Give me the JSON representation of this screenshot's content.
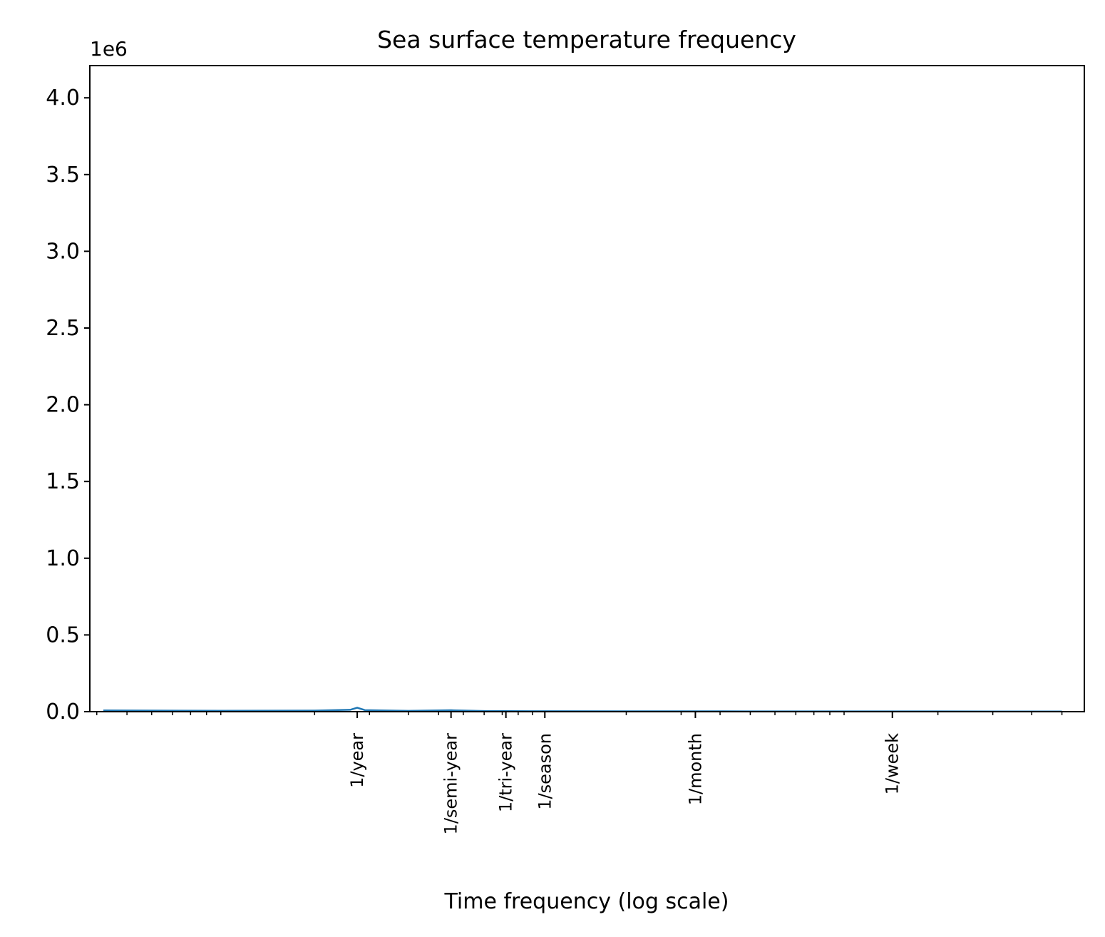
{
  "chart_data": {
    "type": "line",
    "title": "Sea surface temperature frequency",
    "xlabel": "Time frequency (log scale)",
    "ylabel": "",
    "x_scale": "log",
    "x_unit": "1/day",
    "xlim": [
      0.00038,
      0.59
    ],
    "ylim": [
      0,
      4210000
    ],
    "y_offset_label": "1e6",
    "y_ticks": [
      {
        "value": 0,
        "label": "0.0"
      },
      {
        "value": 500000,
        "label": "0.5"
      },
      {
        "value": 1000000,
        "label": "1.0"
      },
      {
        "value": 1500000,
        "label": "1.5"
      },
      {
        "value": 2000000,
        "label": "2.0"
      },
      {
        "value": 2500000,
        "label": "2.5"
      },
      {
        "value": 3000000,
        "label": "3.0"
      },
      {
        "value": 3500000,
        "label": "3.5"
      },
      {
        "value": 4000000,
        "label": "4.0"
      }
    ],
    "x_ticks": [
      {
        "value": 0.00274,
        "label": "1/year"
      },
      {
        "value": 0.00548,
        "label": "1/semi-year"
      },
      {
        "value": 0.00822,
        "label": "1/tri-year"
      },
      {
        "value": 0.01096,
        "label": "1/season"
      },
      {
        "value": 0.03333,
        "label": "1/month"
      },
      {
        "value": 0.14286,
        "label": "1/week"
      }
    ],
    "grid": false,
    "series": [
      {
        "color": "#1f77b4",
        "x": [
          0.00042,
          0.001,
          0.002,
          0.0026,
          0.00274,
          0.0029,
          0.004,
          0.00548,
          0.007,
          0.01,
          0.02,
          0.05,
          0.1,
          0.2,
          0.5
        ],
        "y": [
          8000,
          6000,
          7000,
          12000,
          26000,
          10000,
          5000,
          9000,
          4000,
          3000,
          2500,
          2000,
          1800,
          1500,
          1200
        ]
      }
    ]
  }
}
